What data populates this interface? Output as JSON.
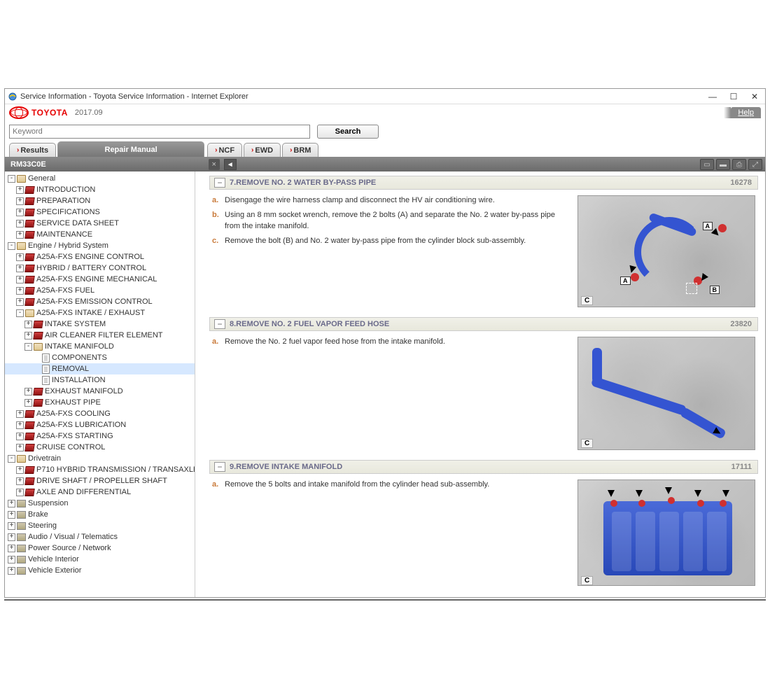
{
  "window": {
    "title": "Service Information - Toyota Service Information - Internet Explorer"
  },
  "header": {
    "brand": "TOYOTA",
    "version": "2017.09",
    "help": "Help"
  },
  "search": {
    "placeholder": "Keyword",
    "button": "Search"
  },
  "tabs": {
    "results": "Results",
    "main": "Repair Manual",
    "ncf": "NCF",
    "ewd": "EWD",
    "brm": "BRM"
  },
  "docbar": {
    "id": "RM33C0E"
  },
  "tree": [
    {
      "d": 0,
      "e": "-",
      "i": "cat",
      "t": "General"
    },
    {
      "d": 1,
      "e": "+",
      "i": "red",
      "t": "INTRODUCTION"
    },
    {
      "d": 1,
      "e": "+",
      "i": "red",
      "t": "PREPARATION"
    },
    {
      "d": 1,
      "e": "+",
      "i": "red",
      "t": "SPECIFICATIONS"
    },
    {
      "d": 1,
      "e": "+",
      "i": "red",
      "t": "SERVICE DATA SHEET"
    },
    {
      "d": 1,
      "e": "+",
      "i": "red",
      "t": "MAINTENANCE"
    },
    {
      "d": 0,
      "e": "-",
      "i": "cat",
      "t": "Engine / Hybrid System"
    },
    {
      "d": 1,
      "e": "+",
      "i": "red",
      "t": "A25A-FXS ENGINE CONTROL"
    },
    {
      "d": 1,
      "e": "+",
      "i": "red",
      "t": "HYBRID / BATTERY CONTROL"
    },
    {
      "d": 1,
      "e": "+",
      "i": "red",
      "t": "A25A-FXS ENGINE MECHANICAL"
    },
    {
      "d": 1,
      "e": "+",
      "i": "red",
      "t": "A25A-FXS FUEL"
    },
    {
      "d": 1,
      "e": "+",
      "i": "red",
      "t": "A25A-FXS EMISSION CONTROL"
    },
    {
      "d": 1,
      "e": "-",
      "i": "cat",
      "t": "A25A-FXS INTAKE / EXHAUST"
    },
    {
      "d": 2,
      "e": "+",
      "i": "red",
      "t": "INTAKE SYSTEM"
    },
    {
      "d": 2,
      "e": "+",
      "i": "red",
      "t": "AIR CLEANER FILTER ELEMENT"
    },
    {
      "d": 2,
      "e": "-",
      "i": "cat",
      "t": "INTAKE MANIFOLD"
    },
    {
      "d": 3,
      "e": " ",
      "i": "doc",
      "t": "COMPONENTS"
    },
    {
      "d": 3,
      "e": " ",
      "i": "doc",
      "t": "REMOVAL",
      "sel": true
    },
    {
      "d": 3,
      "e": " ",
      "i": "doc",
      "t": "INSTALLATION"
    },
    {
      "d": 2,
      "e": "+",
      "i": "red",
      "t": "EXHAUST MANIFOLD"
    },
    {
      "d": 2,
      "e": "+",
      "i": "red",
      "t": "EXHAUST PIPE"
    },
    {
      "d": 1,
      "e": "+",
      "i": "red",
      "t": "A25A-FXS COOLING"
    },
    {
      "d": 1,
      "e": "+",
      "i": "red",
      "t": "A25A-FXS LUBRICATION"
    },
    {
      "d": 1,
      "e": "+",
      "i": "red",
      "t": "A25A-FXS STARTING"
    },
    {
      "d": 1,
      "e": "+",
      "i": "red",
      "t": "CRUISE CONTROL"
    },
    {
      "d": 0,
      "e": "-",
      "i": "cat",
      "t": "Drivetrain"
    },
    {
      "d": 1,
      "e": "+",
      "i": "red",
      "t": "P710 HYBRID TRANSMISSION / TRANSAXLE"
    },
    {
      "d": 1,
      "e": "+",
      "i": "red",
      "t": "DRIVE SHAFT / PROPELLER SHAFT"
    },
    {
      "d": 1,
      "e": "+",
      "i": "red",
      "t": "AXLE AND DIFFERENTIAL"
    },
    {
      "d": 0,
      "e": "+",
      "i": "gr",
      "t": "Suspension"
    },
    {
      "d": 0,
      "e": "+",
      "i": "gr",
      "t": "Brake"
    },
    {
      "d": 0,
      "e": "+",
      "i": "gr",
      "t": "Steering"
    },
    {
      "d": 0,
      "e": "+",
      "i": "gr",
      "t": "Audio / Visual / Telematics"
    },
    {
      "d": 0,
      "e": "+",
      "i": "gr",
      "t": "Power Source / Network"
    },
    {
      "d": 0,
      "e": "+",
      "i": "gr",
      "t": "Vehicle Interior"
    },
    {
      "d": 0,
      "e": "+",
      "i": "gr",
      "t": "Vehicle Exterior"
    }
  ],
  "sections": [
    {
      "title": "7.REMOVE NO. 2 WATER BY-PASS PIPE",
      "code": "16278",
      "steps": [
        {
          "l": "a.",
          "t": "Disengage the wire harness clamp and disconnect the HV air conditioning wire."
        },
        {
          "l": "b.",
          "t": "Using an 8 mm socket wrench, remove the 2 bolts (A) and separate the No. 2 water by-pass pipe from the intake manifold."
        },
        {
          "l": "c.",
          "t": "Remove the bolt (B) and No. 2 water by-pass pipe from the cylinder block sub-assembly."
        }
      ]
    },
    {
      "title": "8.REMOVE NO. 2 FUEL VAPOR FEED HOSE",
      "code": "23820",
      "steps": [
        {
          "l": "a.",
          "t": "Remove the No. 2 fuel vapor feed hose from the intake manifold."
        }
      ]
    },
    {
      "title": "9.REMOVE INTAKE MANIFOLD",
      "code": "17111",
      "steps": [
        {
          "l": "a.",
          "t": "Remove the 5 bolts and intake manifold from the cylinder head sub-assembly."
        }
      ]
    }
  ]
}
